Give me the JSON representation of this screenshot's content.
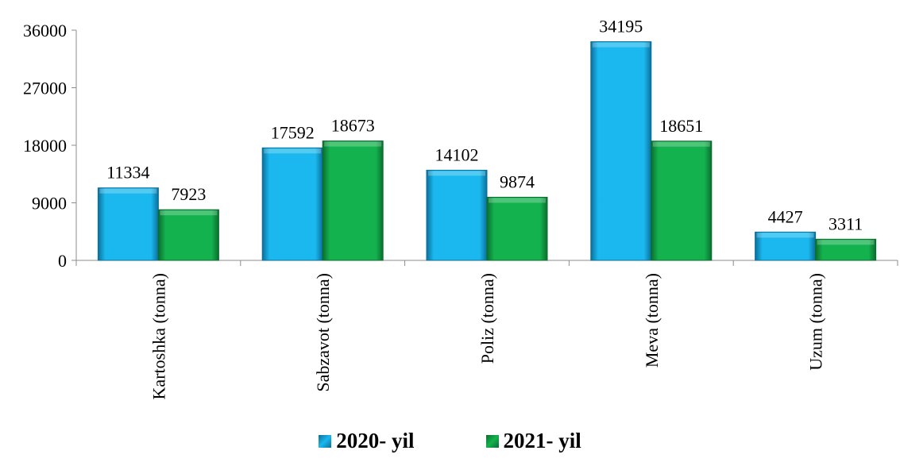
{
  "chart_data": {
    "type": "bar",
    "categories": [
      "Kartoshka (tonna)",
      "Sabzavot (tonna)",
      "Poliz (tonna)",
      "Meva (tonna)",
      "Uzum (tonna)"
    ],
    "series": [
      {
        "name": "2020- yil",
        "values": [
          11334,
          17592,
          14102,
          34195,
          4427
        ],
        "color": "#1ab8ee"
      },
      {
        "name": "2021- yil",
        "values": [
          7923,
          18673,
          9874,
          18651,
          3311
        ],
        "color": "#14b24e"
      }
    ],
    "ylim": [
      0,
      36000
    ],
    "yticks": [
      0,
      9000,
      18000,
      27000,
      36000
    ],
    "grid": false,
    "legend_position": "bottom",
    "title": "",
    "xlabel": "",
    "ylabel": ""
  }
}
